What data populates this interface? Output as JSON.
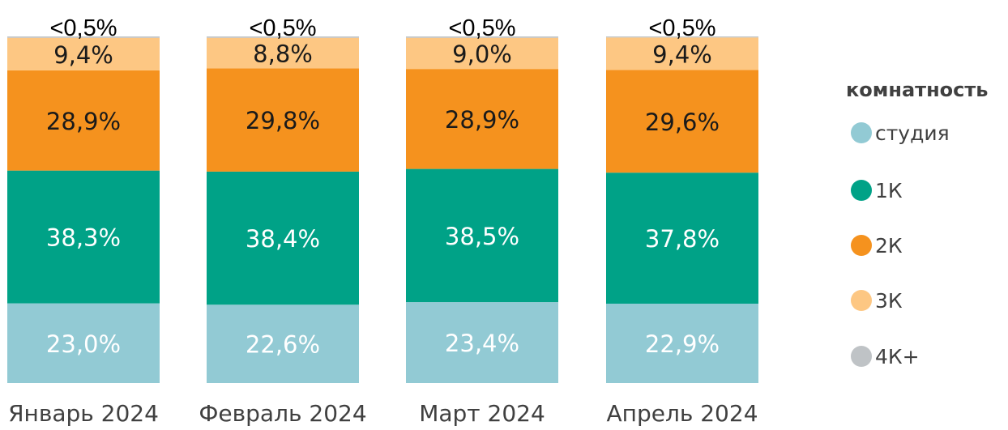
{
  "chart_data": {
    "type": "bar",
    "stacked": true,
    "normalized": true,
    "categories": [
      "Январь 2024",
      "Февраль 2024",
      "Март 2024",
      "Апрель 2024"
    ],
    "series": [
      {
        "name": "студия",
        "color": "#92CAD4",
        "label_color": "#FFFFFF",
        "values": [
          23.0,
          22.6,
          23.4,
          22.9
        ],
        "labels": [
          "23,0%",
          "22,6%",
          "23,4%",
          "22,9%"
        ]
      },
      {
        "name": "1К",
        "color": "#00A287",
        "label_color": "#FFFFFF",
        "values": [
          38.3,
          38.4,
          38.5,
          37.8
        ],
        "labels": [
          "38,3%",
          "38,4%",
          "38,5%",
          "37,8%"
        ]
      },
      {
        "name": "2К",
        "color": "#F5921E",
        "label_color": "#1A1A1A",
        "values": [
          28.9,
          29.8,
          28.9,
          29.6
        ],
        "labels": [
          "28,9%",
          "29,8%",
          "28,9%",
          "29,6%"
        ]
      },
      {
        "name": "3К",
        "color": "#FDC783",
        "label_color": "#1A1A1A",
        "values": [
          9.4,
          8.8,
          9.0,
          9.4
        ],
        "labels": [
          "9,4%",
          "8,8%",
          "9,0%",
          "9,4%"
        ]
      },
      {
        "name": "4К+",
        "color": "#BFC3C6",
        "label_color": "#000000",
        "values": [
          0.4,
          0.4,
          0.4,
          0.3
        ],
        "labels": [
          "<0,5%",
          "<0,5%",
          "<0,5%",
          "<0,5%"
        ]
      }
    ],
    "ylim": [
      0,
      100
    ],
    "legend": {
      "title": "комнатность",
      "position": "right"
    },
    "grid": false
  }
}
